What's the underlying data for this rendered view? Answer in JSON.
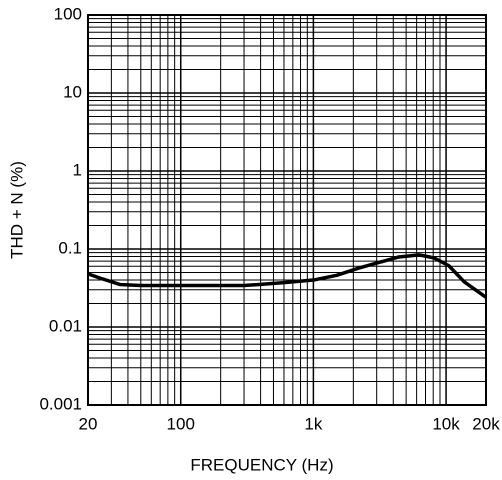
{
  "chart_data": {
    "type": "line",
    "xlabel": "FREQUENCY (Hz)",
    "ylabel": "THD + N (%)",
    "x": [
      20,
      25,
      35,
      50,
      100,
      300,
      600,
      1000,
      1500,
      2200,
      3000,
      4400,
      6300,
      8100,
      10500,
      13700,
      20000
    ],
    "series": [
      {
        "color": "#000000",
        "values": [
          0.048,
          0.042,
          0.035,
          0.034,
          0.034,
          0.034,
          0.037,
          0.04,
          0.046,
          0.057,
          0.066,
          0.079,
          0.084,
          0.077,
          0.061,
          0.038,
          0.024
        ]
      }
    ],
    "xlim": [
      20,
      20000
    ],
    "ylim": [
      0.001,
      100
    ],
    "xticks": [
      20,
      100,
      {
        "value": 1000,
        "label": "1k"
      },
      {
        "value": 10000,
        "label": "10k"
      },
      {
        "value": 20000,
        "label": "20k"
      }
    ],
    "yticks": [
      0.001,
      0.01,
      0.1,
      1,
      10,
      100
    ],
    "log_x": true,
    "log_y": true,
    "grid": true
  }
}
